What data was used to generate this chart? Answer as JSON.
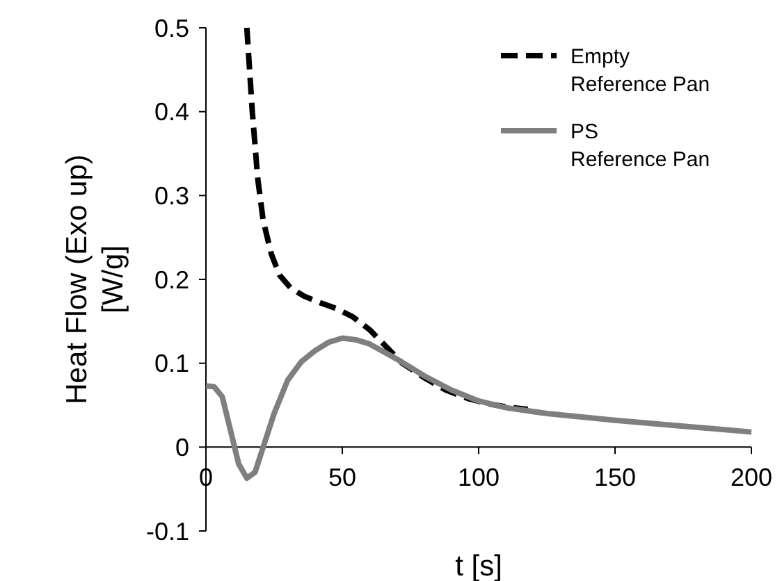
{
  "chart_data": {
    "type": "line",
    "xlabel": "t [s]",
    "ylabel": "Heat Flow (Exo up) [W/g]",
    "xlim": [
      0,
      200
    ],
    "ylim": [
      -0.1,
      0.5
    ],
    "xticks": [
      0,
      50,
      100,
      150,
      200
    ],
    "yticks": [
      -0.1,
      0,
      0.1,
      0.2,
      0.3,
      0.4,
      0.5
    ],
    "grid": false,
    "legend": "top right",
    "series": [
      {
        "name": "Empty Reference Pan",
        "color": "#000000",
        "line_style": "dashed",
        "x": [
          15,
          17,
          19,
          21,
          24,
          27,
          31,
          36,
          42,
          48,
          54,
          60,
          66,
          72,
          80,
          88,
          96,
          103,
          110,
          118
        ],
        "values": [
          0.5,
          0.4,
          0.32,
          0.27,
          0.23,
          0.205,
          0.19,
          0.18,
          0.172,
          0.165,
          0.155,
          0.14,
          0.12,
          0.1,
          0.083,
          0.068,
          0.058,
          0.052,
          0.048,
          0.045
        ]
      },
      {
        "name": "PS Reference Pan",
        "color": "#7f7f7f",
        "line_style": "solid",
        "x": [
          0,
          3,
          6,
          9,
          12,
          15,
          18,
          21,
          25,
          30,
          35,
          40,
          45,
          50,
          55,
          60,
          70,
          80,
          90,
          100,
          110,
          125,
          150,
          175,
          200
        ],
        "values": [
          0.073,
          0.072,
          0.06,
          0.02,
          -0.02,
          -0.037,
          -0.03,
          0,
          0.04,
          0.08,
          0.102,
          0.115,
          0.125,
          0.13,
          0.128,
          0.123,
          0.105,
          0.085,
          0.068,
          0.055,
          0.047,
          0.04,
          0.032,
          0.025,
          0.018
        ]
      }
    ]
  }
}
